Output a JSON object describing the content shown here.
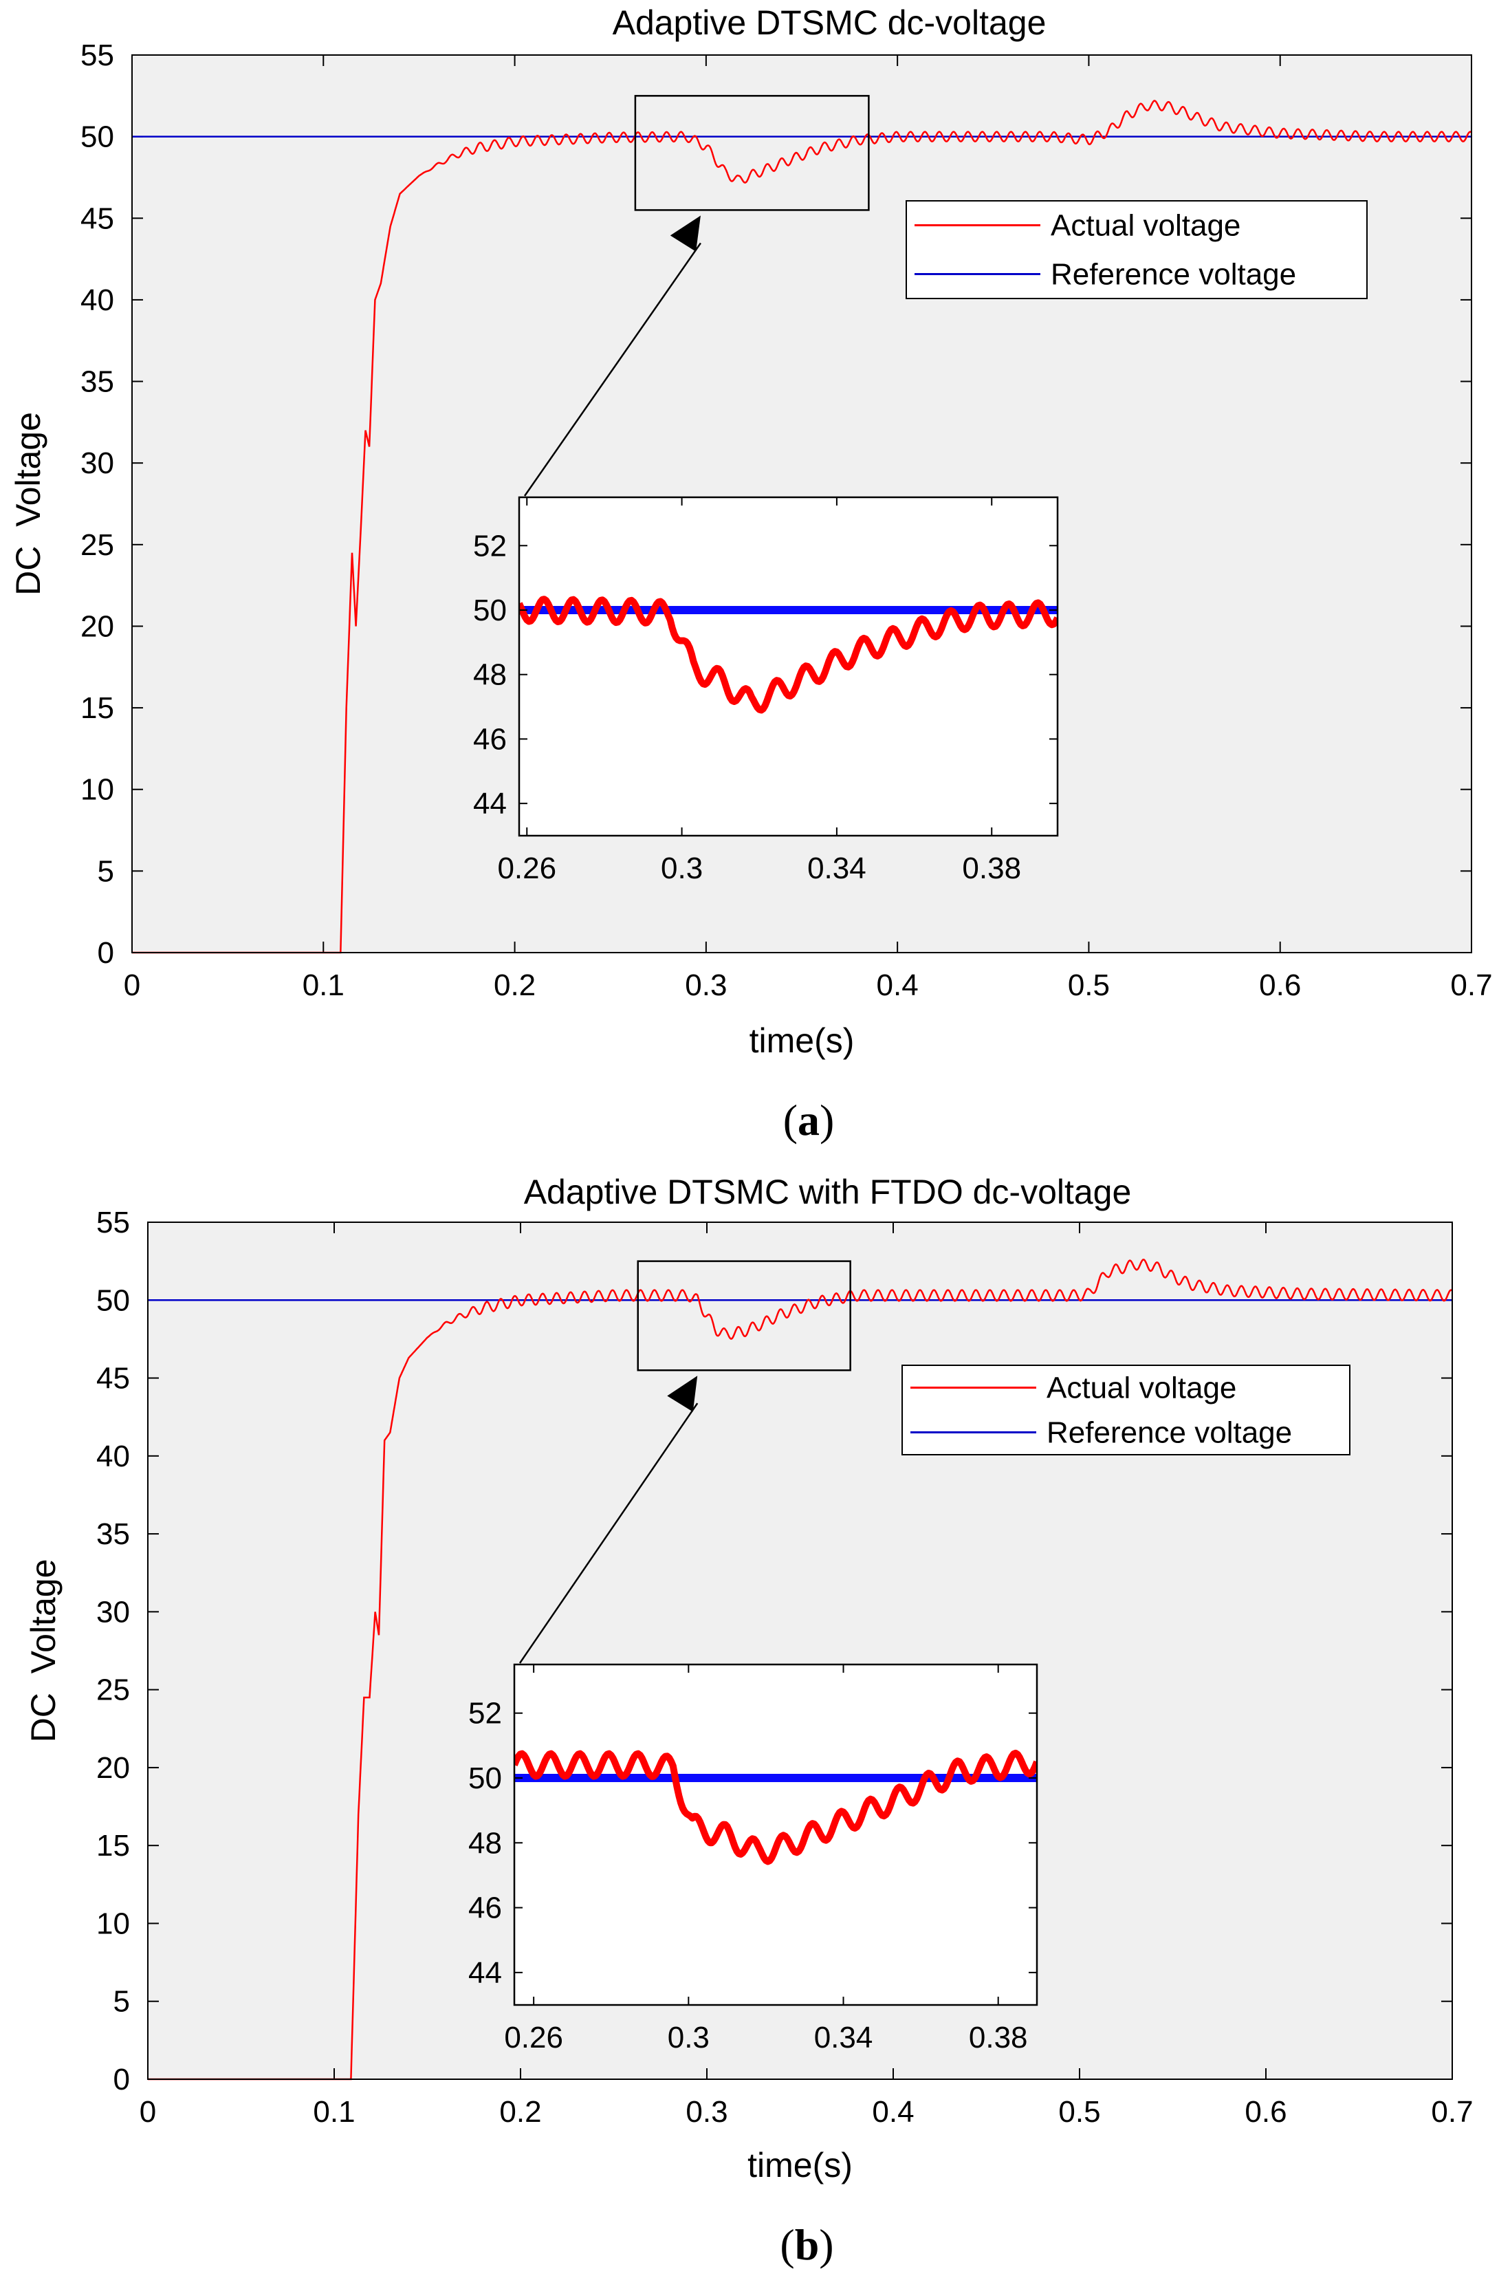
{
  "chart_data": [
    {
      "panel": "a",
      "type": "line",
      "title": "Adaptive DTSMC dc-voltage",
      "xlabel": "time(s)",
      "ylabel": "DC  Voltage",
      "xlim": [
        0,
        0.7
      ],
      "ylim": [
        0,
        55
      ],
      "xticks": [
        "0",
        "0.1",
        "0.2",
        "0.3",
        "0.4",
        "0.5",
        "0.6",
        "0.7"
      ],
      "yticks": [
        "0",
        "5",
        "10",
        "15",
        "20",
        "25",
        "30",
        "35",
        "40",
        "45",
        "50",
        "55"
      ],
      "legend": [
        "Actual voltage",
        "Reference voltage"
      ],
      "legend_position": "top-right",
      "colors": {
        "actual": "#ff0000",
        "reference": "#0000c8",
        "background": "#f0f0f0"
      },
      "series": [
        {
          "name": "Actual voltage",
          "points": [
            [
              0,
              0
            ],
            [
              0.107,
              0
            ],
            [
              0.109,
              0
            ],
            [
              0.112,
              15
            ],
            [
              0.115,
              24.5
            ],
            [
              0.117,
              20
            ],
            [
              0.12,
              27
            ],
            [
              0.122,
              32
            ],
            [
              0.124,
              31
            ],
            [
              0.127,
              40
            ],
            [
              0.13,
              41
            ],
            [
              0.135,
              44.5
            ],
            [
              0.14,
              46.5
            ],
            [
              0.15,
              47.6
            ],
            [
              0.16,
              48.3
            ],
            [
              0.17,
              48.9
            ],
            [
              0.18,
              49.3
            ],
            [
              0.2,
              49.7
            ],
            [
              0.25,
              49.95
            ],
            [
              0.29,
              50
            ],
            [
              0.3,
              49.4
            ],
            [
              0.31,
              47.8
            ],
            [
              0.317,
              47.3
            ],
            [
              0.325,
              47.7
            ],
            [
              0.34,
              48.4
            ],
            [
              0.36,
              49.3
            ],
            [
              0.38,
              49.8
            ],
            [
              0.4,
              50
            ],
            [
              0.48,
              50
            ],
            [
              0.5,
              49.8
            ],
            [
              0.51,
              50.3
            ],
            [
              0.52,
              51.3
            ],
            [
              0.53,
              51.9
            ],
            [
              0.54,
              51.9
            ],
            [
              0.55,
              51.5
            ],
            [
              0.56,
              51
            ],
            [
              0.57,
              50.6
            ],
            [
              0.6,
              50.2
            ],
            [
              0.65,
              50
            ],
            [
              0.7,
              50
            ]
          ],
          "ripple_amplitude": 0.3,
          "ripple_period": 0.0075,
          "ripple_start": 0.15
        },
        {
          "name": "Reference voltage",
          "points": [
            [
              0,
              50
            ],
            [
              0.7,
              50
            ]
          ]
        }
      ],
      "zoom_box": {
        "x": [
          0.263,
          0.385
        ],
        "y": [
          45.5,
          52.5
        ]
      },
      "inset": {
        "xlim": [
          0.258,
          0.397
        ],
        "ylim": [
          43,
          53.5
        ],
        "xticks": [
          "0.26",
          "0.3",
          "0.34",
          "0.38"
        ],
        "yticks": [
          "44",
          "46",
          "48",
          "50",
          "52"
        ],
        "series": [
          {
            "name": "Actual voltage",
            "points": [
              [
                0.258,
                50
              ],
              [
                0.29,
                49.95
              ],
              [
                0.297,
                49.9
              ],
              [
                0.303,
                48.2
              ],
              [
                0.31,
                47.8
              ],
              [
                0.318,
                47.1
              ],
              [
                0.325,
                47.5
              ],
              [
                0.335,
                48.1
              ],
              [
                0.345,
                48.7
              ],
              [
                0.355,
                49.1
              ],
              [
                0.365,
                49.5
              ],
              [
                0.375,
                49.8
              ],
              [
                0.397,
                49.9
              ]
            ],
            "ripple_amplitude": 0.35,
            "ripple_period": 0.0075
          },
          {
            "name": "Reference voltage",
            "points": [
              [
                0.258,
                50
              ],
              [
                0.397,
                50
              ]
            ]
          }
        ]
      },
      "caption": "a"
    },
    {
      "panel": "b",
      "type": "line",
      "title": "Adaptive DTSMC with FTDO dc-voltage",
      "xlabel": "time(s)",
      "ylabel": "DC  Voltage",
      "xlim": [
        0,
        0.7
      ],
      "ylim": [
        0,
        55
      ],
      "xticks": [
        "0",
        "0.1",
        "0.2",
        "0.3",
        "0.4",
        "0.5",
        "0.6",
        "0.7"
      ],
      "yticks": [
        "0",
        "5",
        "10",
        "15",
        "20",
        "25",
        "30",
        "35",
        "40",
        "45",
        "50",
        "55"
      ],
      "legend": [
        "Actual voltage",
        "Reference voltage"
      ],
      "legend_position": "top-right",
      "colors": {
        "actual": "#ff0000",
        "reference": "#0000c8",
        "background": "#f0f0f0"
      },
      "series": [
        {
          "name": "Actual voltage",
          "points": [
            [
              0,
              0
            ],
            [
              0.107,
              0
            ],
            [
              0.109,
              0
            ],
            [
              0.113,
              17
            ],
            [
              0.116,
              24.5
            ],
            [
              0.119,
              24.5
            ],
            [
              0.122,
              30
            ],
            [
              0.124,
              28.5
            ],
            [
              0.127,
              41
            ],
            [
              0.13,
              41.5
            ],
            [
              0.135,
              45
            ],
            [
              0.14,
              46.3
            ],
            [
              0.15,
              47.6
            ],
            [
              0.16,
              48.5
            ],
            [
              0.17,
              49.1
            ],
            [
              0.18,
              49.5
            ],
            [
              0.2,
              50
            ],
            [
              0.25,
              50.3
            ],
            [
              0.29,
              50.3
            ],
            [
              0.295,
              50
            ],
            [
              0.3,
              49
            ],
            [
              0.305,
              48.1
            ],
            [
              0.31,
              47.8
            ],
            [
              0.32,
              48
            ],
            [
              0.33,
              48.5
            ],
            [
              0.34,
              49.1
            ],
            [
              0.36,
              49.9
            ],
            [
              0.38,
              50.3
            ],
            [
              0.5,
              50.3
            ],
            [
              0.505,
              50.4
            ],
            [
              0.515,
              51.8
            ],
            [
              0.53,
              52.3
            ],
            [
              0.54,
              52.2
            ],
            [
              0.55,
              51.5
            ],
            [
              0.56,
              51
            ],
            [
              0.58,
              50.6
            ],
            [
              0.62,
              50.4
            ],
            [
              0.7,
              50.3
            ]
          ],
          "ripple_amplitude": 0.35,
          "ripple_period": 0.0075,
          "ripple_start": 0.15
        },
        {
          "name": "Reference voltage",
          "points": [
            [
              0,
              50
            ],
            [
              0.7,
              50
            ]
          ]
        }
      ],
      "zoom_box": {
        "x": [
          0.263,
          0.377
        ],
        "y": [
          45.5,
          52.5
        ]
      },
      "inset": {
        "xlim": [
          0.255,
          0.39
        ],
        "ylim": [
          43,
          53.5
        ],
        "xticks": [
          "0.26",
          "0.3",
          "0.34",
          "0.38"
        ],
        "yticks": [
          "44",
          "46",
          "48",
          "50",
          "52"
        ],
        "series": [
          {
            "name": "Actual voltage",
            "points": [
              [
                0.255,
                50.4
              ],
              [
                0.29,
                50.4
              ],
              [
                0.296,
                50.3
              ],
              [
                0.301,
                48.5
              ],
              [
                0.31,
                48.2
              ],
              [
                0.318,
                47.7
              ],
              [
                0.325,
                47.9
              ],
              [
                0.335,
                48.4
              ],
              [
                0.345,
                48.9
              ],
              [
                0.355,
                49.4
              ],
              [
                0.362,
                49.8
              ],
              [
                0.37,
                50.2
              ],
              [
                0.39,
                50.5
              ]
            ],
            "ripple_amplitude": 0.35,
            "ripple_period": 0.0075
          },
          {
            "name": "Reference voltage",
            "points": [
              [
                0.255,
                50
              ],
              [
                0.39,
                50
              ]
            ]
          }
        ]
      },
      "caption": "b"
    }
  ]
}
